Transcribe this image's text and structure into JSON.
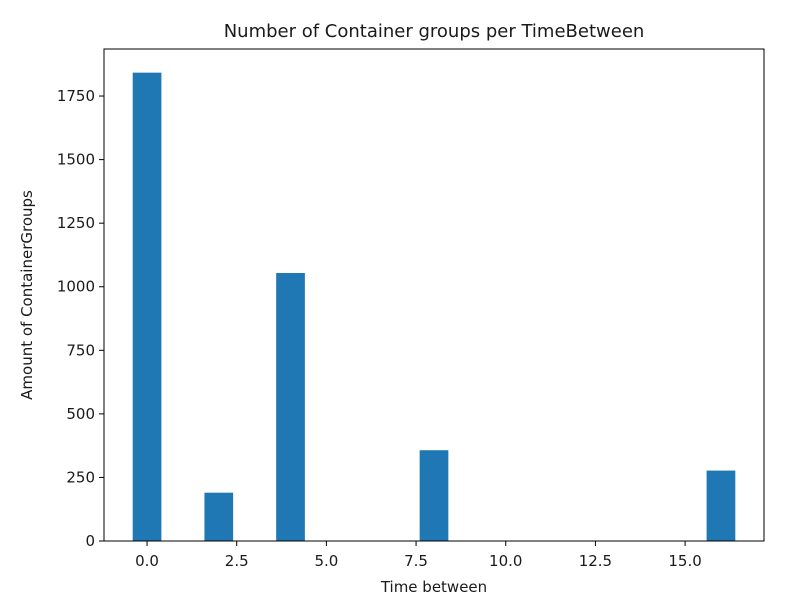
{
  "chart_data": {
    "type": "bar",
    "title": "Number of Container groups per TimeBetween",
    "xlabel": "Time between",
    "ylabel": "Amount of ContainerGroups",
    "bins": [
      {
        "x0": -0.4,
        "x1": 0.4,
        "value": 1842
      },
      {
        "x0": 1.6,
        "x1": 2.4,
        "value": 190
      },
      {
        "x0": 3.6,
        "x1": 4.4,
        "value": 1054
      },
      {
        "x0": 7.6,
        "x1": 8.4,
        "value": 357
      },
      {
        "x0": 15.6,
        "x1": 16.4,
        "value": 277
      }
    ],
    "xlim": [
      -1.2,
      17.2
    ],
    "ylim": [
      0,
      1935
    ],
    "xticks": [
      {
        "value": 0.0,
        "label": "0.0"
      },
      {
        "value": 2.5,
        "label": "2.5"
      },
      {
        "value": 5.0,
        "label": "5.0"
      },
      {
        "value": 7.5,
        "label": "7.5"
      },
      {
        "value": 10.0,
        "label": "10.0"
      },
      {
        "value": 12.5,
        "label": "12.5"
      },
      {
        "value": 15.0,
        "label": "15.0"
      }
    ],
    "yticks": [
      {
        "value": 0,
        "label": "0"
      },
      {
        "value": 250,
        "label": "250"
      },
      {
        "value": 500,
        "label": "500"
      },
      {
        "value": 750,
        "label": "750"
      },
      {
        "value": 1000,
        "label": "1000"
      },
      {
        "value": 1250,
        "label": "1250"
      },
      {
        "value": 1500,
        "label": "1500"
      },
      {
        "value": 1750,
        "label": "1750"
      }
    ],
    "bar_color": "#1f77b4",
    "grid": false,
    "legend": null
  }
}
